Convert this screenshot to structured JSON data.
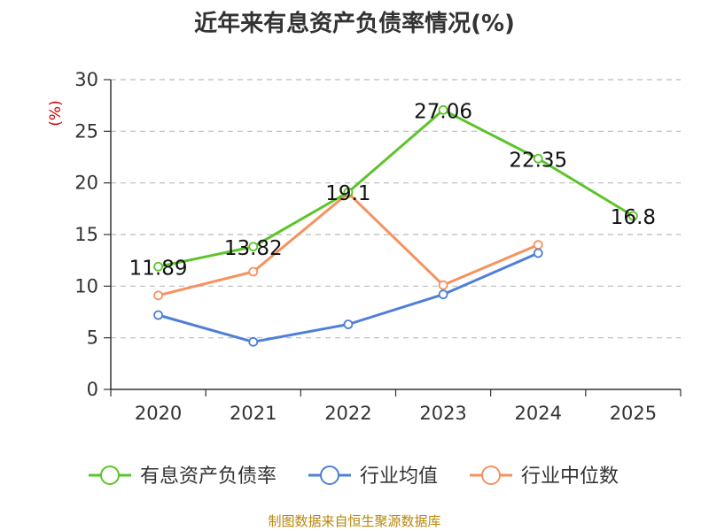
{
  "title": "近年来有息资产负债率情况(%)",
  "source": "制图数据来自恒生聚源数据库",
  "colors": {
    "有息资产负债率": "#5cc42a",
    "行业均值": "#4f7fd8",
    "行业中位数": "#f5925f",
    "axis": "#333333",
    "grid": "#bbbbbb",
    "unit": "#d40000"
  },
  "chart_data": {
    "type": "line",
    "title": "近年来有息资产负债率情况(%)",
    "ylabel": "(%)",
    "xlabel": "",
    "categories": [
      "2020",
      "2021",
      "2022",
      "2023",
      "2024",
      "2025"
    ],
    "ylim": [
      0,
      30
    ],
    "yticks": [
      0,
      5,
      10,
      15,
      20,
      25,
      30
    ],
    "grid": true,
    "legend_position": "bottom",
    "series": [
      {
        "name": "有息资产负债率",
        "values": [
          11.89,
          13.82,
          19.1,
          27.06,
          22.35,
          16.8
        ],
        "labels": [
          "11.89",
          "13.82",
          "19.1",
          "27.06",
          "22.35",
          "16.8"
        ]
      },
      {
        "name": "行业均值",
        "values": [
          7.2,
          4.6,
          6.3,
          9.2,
          13.2,
          null
        ]
      },
      {
        "name": "行业中位数",
        "values": [
          9.1,
          11.4,
          19.0,
          10.1,
          14.0,
          null
        ]
      }
    ]
  }
}
